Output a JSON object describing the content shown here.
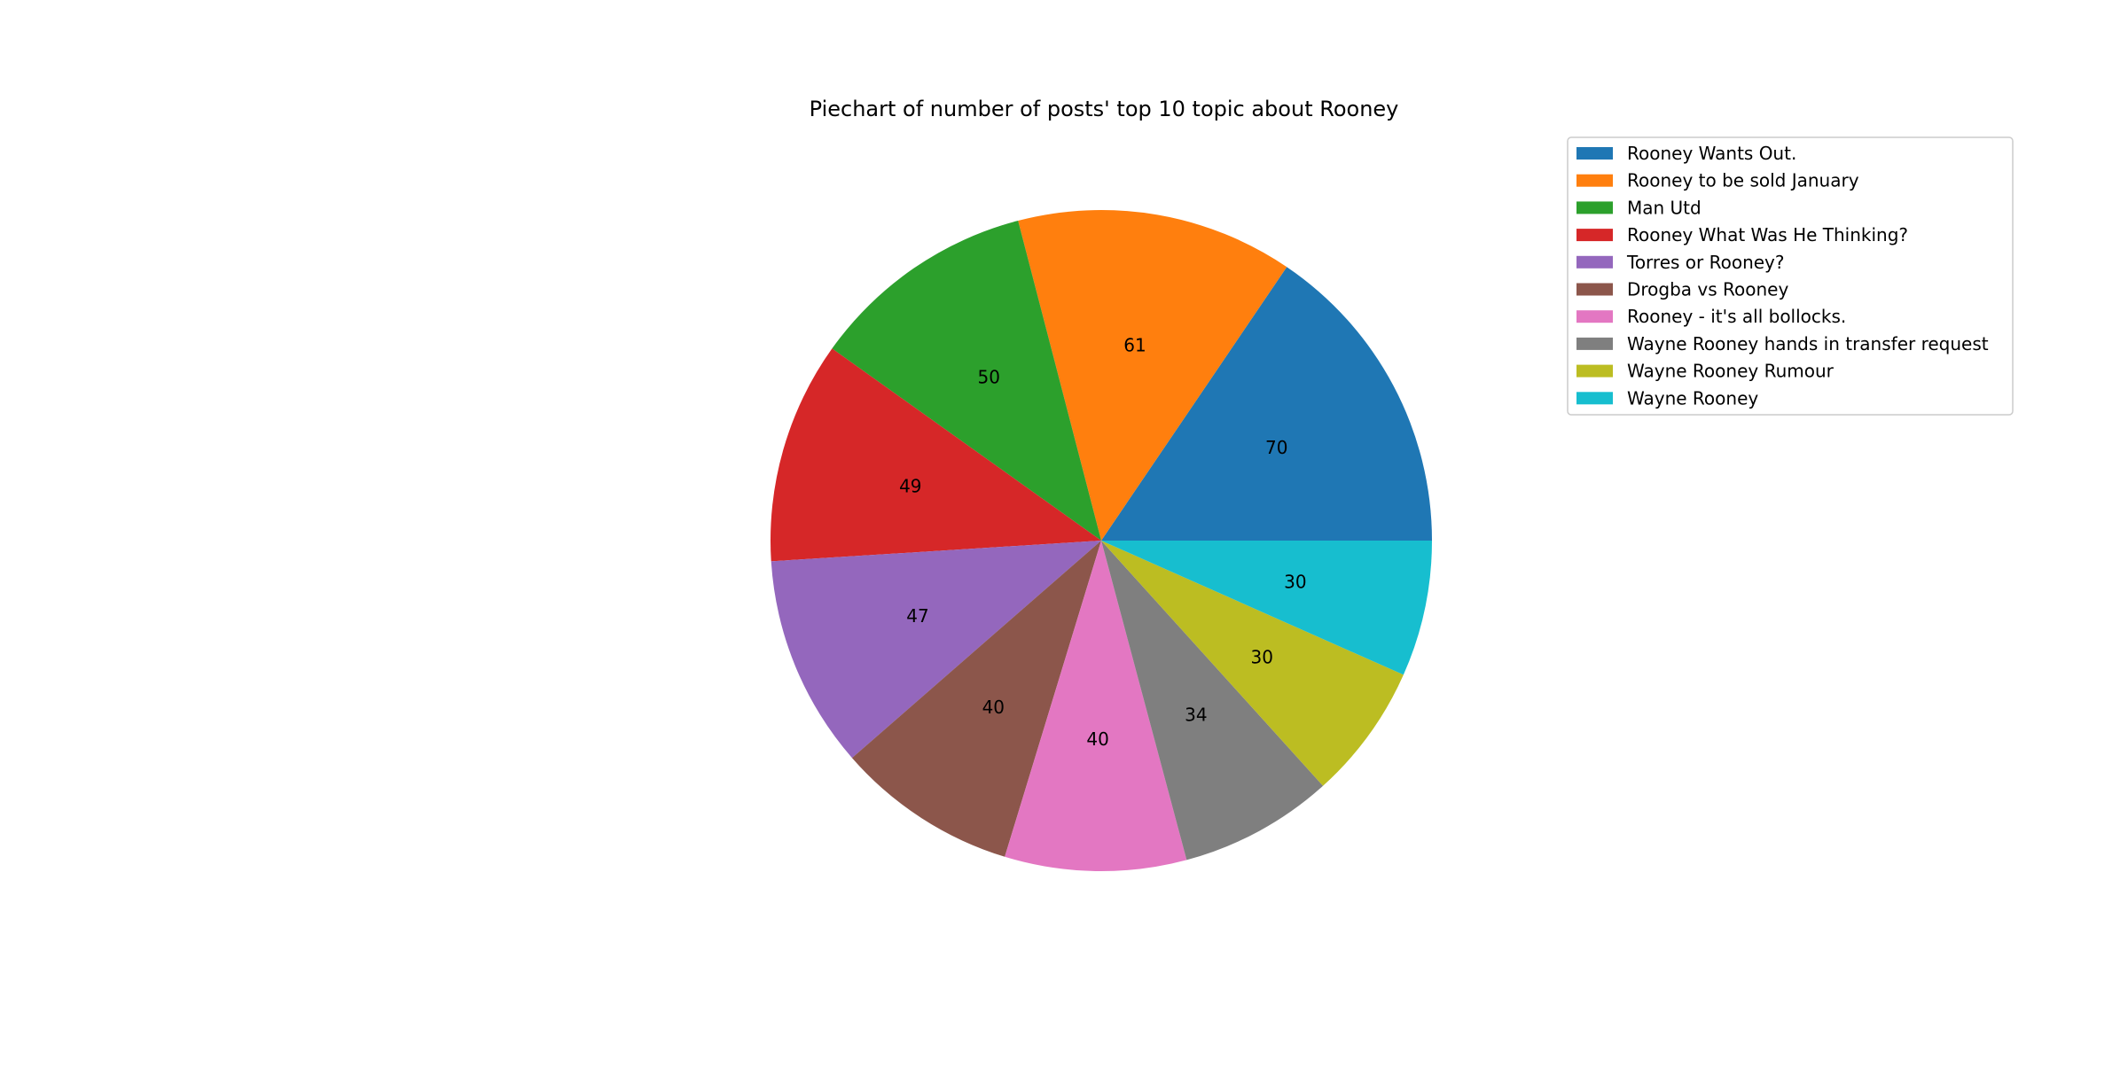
{
  "chart_data": {
    "type": "pie",
    "title": "Piechart of number of posts' top 10 topic about Rooney",
    "categories": [
      "Rooney Wants Out.",
      "Rooney to be sold January",
      "Man Utd",
      "Rooney What Was He Thinking?",
      "Torres or Rooney?",
      "Drogba vs Rooney",
      "Rooney - it's all bollocks.",
      "Wayne Rooney hands in transfer request",
      "Wayne Rooney Rumour",
      "Wayne Rooney"
    ],
    "values": [
      70,
      61,
      50,
      49,
      47,
      40,
      40,
      34,
      30,
      30
    ],
    "colors": [
      "#1f77b4",
      "#ff7f0e",
      "#2ca02c",
      "#d62728",
      "#9467bd",
      "#8c564b",
      "#e377c2",
      "#7f7f7f",
      "#bcbd22",
      "#17becf"
    ],
    "start_angle_deg": 0,
    "direction": "counterclockwise",
    "legend_position": "upper-right"
  }
}
